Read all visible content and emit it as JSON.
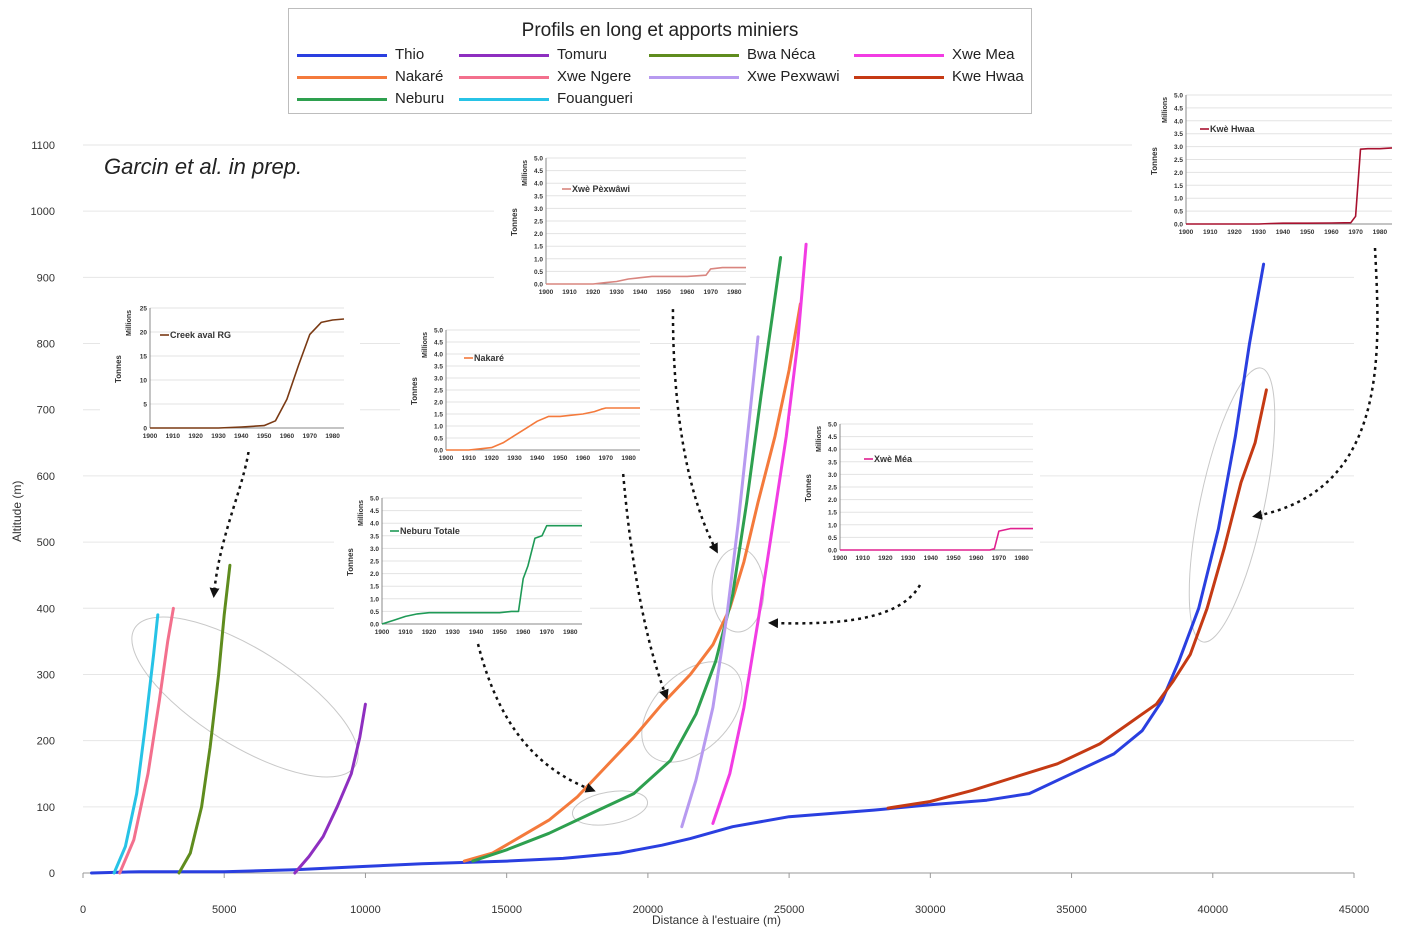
{
  "legend": {
    "title": "Profils en long et apports miniers",
    "items": [
      {
        "name": "Thio",
        "color": "#2a3fe0"
      },
      {
        "name": "Nakaré",
        "color": "#f47a3c"
      },
      {
        "name": "Neburu",
        "color": "#2ea04f"
      },
      {
        "name": "Tomuru",
        "color": "#8e2fc0"
      },
      {
        "name": "Xwe Ngere",
        "color": "#f3708d"
      },
      {
        "name": "Fouangueri",
        "color": "#27c3e6"
      },
      {
        "name": "Bwa Néca",
        "color": "#5f8c1e"
      },
      {
        "name": "Xwe Pexwawi",
        "color": "#b79af0"
      },
      {
        "name": "Xwe Mea",
        "color": "#f23ce3"
      },
      {
        "name": "Kwe Hwaa",
        "color": "#c53a14"
      }
    ]
  },
  "credit": "Garcin et al. in prep.",
  "chart_data": [
    {
      "type": "line",
      "xlabel": "Distance à l'estuaire (m)",
      "ylabel": "Altitude (m)",
      "xlim": [
        0,
        45000
      ],
      "ylim": [
        0,
        1100
      ],
      "xticks": [
        0,
        5000,
        10000,
        15000,
        20000,
        25000,
        30000,
        35000,
        40000,
        45000
      ],
      "yticks": [
        0,
        100,
        200,
        300,
        400,
        500,
        600,
        700,
        800,
        900,
        1000,
        1100
      ],
      "series": [
        {
          "name": "Thio",
          "color": "#2a3fe0",
          "x": [
            300,
            2000,
            5000,
            7500,
            10000,
            12000,
            15000,
            17000,
            19000,
            20500,
            21500,
            23000,
            25000,
            28000,
            30000,
            32000,
            33500,
            35000,
            36500,
            37500,
            38200,
            38800,
            39500,
            40200,
            40800,
            41300,
            41800
          ],
          "y": [
            0,
            2,
            2,
            5,
            10,
            14,
            18,
            22,
            30,
            42,
            52,
            70,
            85,
            95,
            103,
            110,
            120,
            150,
            180,
            215,
            260,
            320,
            400,
            520,
            660,
            800,
            920
          ]
        },
        {
          "name": "Nakaré",
          "color": "#f47a3c",
          "x": [
            13500,
            14500,
            15500,
            16500,
            17500,
            18500,
            19500,
            20500,
            21500,
            22300,
            22900,
            23400,
            23900,
            24500,
            25000,
            25400
          ],
          "y": [
            18,
            30,
            55,
            80,
            115,
            160,
            205,
            255,
            300,
            345,
            400,
            470,
            560,
            660,
            760,
            860
          ]
        },
        {
          "name": "Neburu",
          "color": "#2ea04f",
          "x": [
            13800,
            15000,
            16500,
            18000,
            19500,
            20800,
            21700,
            22400,
            23000,
            23500,
            24000,
            24400,
            24700
          ],
          "y": [
            18,
            35,
            60,
            90,
            120,
            170,
            240,
            320,
            420,
            560,
            720,
            840,
            930
          ]
        },
        {
          "name": "Tomuru",
          "color": "#8e2fc0",
          "x": [
            7500,
            8000,
            8500,
            9000,
            9500,
            9800,
            10000
          ],
          "y": [
            0,
            25,
            55,
            100,
            150,
            205,
            255
          ]
        },
        {
          "name": "Xwe Ngere",
          "color": "#f3708d",
          "x": [
            1300,
            1800,
            2300,
            2700,
            3000,
            3200
          ],
          "y": [
            0,
            50,
            150,
            260,
            350,
            400
          ]
        },
        {
          "name": "Fouangueri",
          "color": "#27c3e6",
          "x": [
            1100,
            1500,
            1900,
            2200,
            2500,
            2650
          ],
          "y": [
            0,
            40,
            120,
            220,
            330,
            390
          ]
        },
        {
          "name": "Bwa Néca",
          "color": "#5f8c1e",
          "x": [
            3400,
            3800,
            4200,
            4500,
            4800,
            5000,
            5200
          ],
          "y": [
            0,
            30,
            100,
            190,
            300,
            390,
            465
          ]
        },
        {
          "name": "Xwe Pexwawi",
          "color": "#b79af0",
          "x": [
            21200,
            21700,
            22300,
            22800,
            23200,
            23600,
            23900
          ],
          "y": [
            70,
            140,
            250,
            390,
            530,
            690,
            810
          ]
        },
        {
          "name": "Xwe Mea",
          "color": "#f23ce3",
          "x": [
            22300,
            22900,
            23400,
            23900,
            24400,
            24900,
            25300,
            25600
          ],
          "y": [
            75,
            150,
            250,
            380,
            520,
            660,
            800,
            950
          ]
        },
        {
          "name": "Kwe Hwaa",
          "color": "#c53a14",
          "x": [
            28500,
            30000,
            31500,
            33000,
            34500,
            36000,
            37000,
            38000,
            38600,
            39200,
            39800,
            40400,
            41000,
            41500,
            41900
          ],
          "y": [
            98,
            108,
            125,
            145,
            165,
            195,
            225,
            255,
            290,
            330,
            400,
            490,
            590,
            650,
            730
          ]
        }
      ]
    },
    {
      "type": "line",
      "series": [
        {
          "name": "Creek aval RG",
          "x": [
            1900,
            1910,
            1920,
            1930,
            1940,
            1950,
            1955,
            1960,
            1965,
            1970,
            1975,
            1980,
            1985
          ],
          "y": [
            0,
            0,
            0,
            0,
            0.2,
            0.5,
            1.5,
            6,
            13,
            19.5,
            22,
            22.5,
            22.7
          ]
        }
      ],
      "ylabel": "Tonnes",
      "yunit": "Millions",
      "ylim": [
        0,
        25
      ],
      "yticks": [
        0,
        5,
        10,
        15,
        20,
        25
      ],
      "xticks": [
        1900,
        1910,
        1920,
        1930,
        1940,
        1950,
        1960,
        1970,
        1980
      ]
    },
    {
      "type": "line",
      "series": [
        {
          "name": "Nakaré",
          "x": [
            1900,
            1910,
            1915,
            1920,
            1925,
            1930,
            1935,
            1940,
            1945,
            1950,
            1955,
            1960,
            1965,
            1968,
            1970,
            1975,
            1980,
            1985
          ],
          "y": [
            0,
            0,
            0.05,
            0.1,
            0.3,
            0.6,
            0.9,
            1.2,
            1.4,
            1.4,
            1.45,
            1.5,
            1.6,
            1.7,
            1.75,
            1.75,
            1.75,
            1.75
          ]
        }
      ],
      "ylabel": "Tonnes",
      "yunit": "Millions",
      "ylim": [
        0,
        5
      ],
      "yticks": [
        0.0,
        0.5,
        1.0,
        1.5,
        2.0,
        2.5,
        3.0,
        3.5,
        4.0,
        4.5,
        5.0
      ],
      "xticks": [
        1900,
        1910,
        1920,
        1930,
        1940,
        1950,
        1960,
        1970,
        1980
      ]
    },
    {
      "type": "line",
      "series": [
        {
          "name": "Xwè Pèxwâwi",
          "x": [
            1900,
            1920,
            1925,
            1930,
            1935,
            1940,
            1945,
            1950,
            1960,
            1968,
            1970,
            1975,
            1980,
            1985
          ],
          "y": [
            0,
            0,
            0.05,
            0.1,
            0.2,
            0.25,
            0.3,
            0.3,
            0.3,
            0.35,
            0.6,
            0.65,
            0.65,
            0.65
          ]
        }
      ],
      "ylabel": "Tonnes",
      "yunit": "Millions",
      "ylim": [
        0,
        5
      ],
      "yticks": [
        0.0,
        0.5,
        1.0,
        1.5,
        2.0,
        2.5,
        3.0,
        3.5,
        4.0,
        4.5,
        5.0
      ],
      "xticks": [
        1900,
        1910,
        1920,
        1930,
        1940,
        1950,
        1960,
        1970,
        1980
      ]
    },
    {
      "type": "line",
      "series": [
        {
          "name": "Neburu Totale",
          "x": [
            1900,
            1905,
            1910,
            1915,
            1920,
            1930,
            1940,
            1950,
            1955,
            1958,
            1960,
            1962,
            1965,
            1968,
            1970,
            1975,
            1980,
            1985
          ],
          "y": [
            0,
            0.15,
            0.3,
            0.4,
            0.45,
            0.45,
            0.45,
            0.45,
            0.5,
            0.5,
            1.8,
            2.3,
            3.4,
            3.5,
            3.9,
            3.9,
            3.9,
            3.9
          ]
        }
      ],
      "ylabel": "Tonnes",
      "yunit": "Millions",
      "ylim": [
        0,
        5
      ],
      "yticks": [
        0.0,
        0.5,
        1.0,
        1.5,
        2.0,
        2.5,
        3.0,
        3.5,
        4.0,
        4.5,
        5.0
      ],
      "xticks": [
        1900,
        1910,
        1920,
        1930,
        1940,
        1950,
        1960,
        1970,
        1980
      ]
    },
    {
      "type": "line",
      "series": [
        {
          "name": "Xwè Méa",
          "x": [
            1900,
            1920,
            1940,
            1960,
            1966,
            1968,
            1970,
            1975,
            1980,
            1985
          ],
          "y": [
            0,
            0,
            0,
            0,
            0,
            0.05,
            0.75,
            0.85,
            0.85,
            0.85
          ]
        }
      ],
      "ylabel": "Tonnes",
      "yunit": "Millions",
      "ylim": [
        0,
        5
      ],
      "yticks": [
        0.0,
        0.5,
        1.0,
        1.5,
        2.0,
        2.5,
        3.0,
        3.5,
        4.0,
        4.5,
        5.0
      ],
      "xticks": [
        1900,
        1910,
        1920,
        1930,
        1940,
        1950,
        1960,
        1970,
        1980
      ]
    },
    {
      "type": "line",
      "series": [
        {
          "name": "Kwè Hwaa",
          "x": [
            1900,
            1930,
            1935,
            1940,
            1950,
            1960,
            1968,
            1970,
            1972,
            1975,
            1980,
            1985
          ],
          "y": [
            0,
            0,
            0.02,
            0.03,
            0.03,
            0.04,
            0.05,
            0.3,
            2.9,
            2.92,
            2.92,
            2.95
          ]
        }
      ],
      "ylabel": "Tonnes",
      "yunit": "Millions",
      "ylim": [
        0,
        5
      ],
      "yticks": [
        0.0,
        0.5,
        1.0,
        1.5,
        2.0,
        2.5,
        3.0,
        3.5,
        4.0,
        4.5,
        5.0
      ],
      "xticks": [
        1900,
        1910,
        1920,
        1930,
        1940,
        1950,
        1960,
        1970,
        1980
      ]
    }
  ]
}
